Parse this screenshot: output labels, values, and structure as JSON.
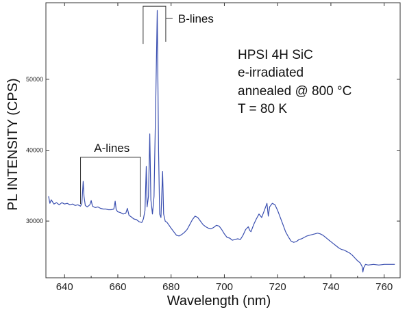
{
  "chart_data": {
    "type": "line",
    "xlabel": "Wavelength (nm)",
    "ylabel": "PL INTENSITY (CPS)",
    "xlim": [
      633,
      766
    ],
    "ylim": [
      22000,
      60800
    ],
    "xticks": [
      640,
      660,
      680,
      700,
      720,
      740,
      760
    ],
    "yticks": [
      30000,
      40000,
      50000
    ],
    "grid": false,
    "line_color": "#3a4fb0",
    "series": [
      {
        "points": [
          [
            634.0,
            33500
          ],
          [
            634.5,
            32500
          ],
          [
            635.0,
            33000
          ],
          [
            636.0,
            32400
          ],
          [
            637.0,
            32600
          ],
          [
            638.0,
            32300
          ],
          [
            639.0,
            32600
          ],
          [
            640.0,
            32400
          ],
          [
            641.0,
            32500
          ],
          [
            642.0,
            32300
          ],
          [
            643.0,
            32400
          ],
          [
            644.0,
            32200
          ],
          [
            645.0,
            32300
          ],
          [
            646.0,
            32100
          ],
          [
            646.5,
            32500
          ],
          [
            647.0,
            35600
          ],
          [
            647.3,
            33500
          ],
          [
            647.8,
            32200
          ],
          [
            648.5,
            32000
          ],
          [
            649.5,
            32300
          ],
          [
            650.0,
            32900
          ],
          [
            650.5,
            32100
          ],
          [
            651.5,
            31900
          ],
          [
            652.5,
            32000
          ],
          [
            653.5,
            31800
          ],
          [
            654.5,
            31700
          ],
          [
            655.5,
            31700
          ],
          [
            656.5,
            31600
          ],
          [
            657.5,
            31600
          ],
          [
            658.5,
            31700
          ],
          [
            659.0,
            32800
          ],
          [
            659.4,
            31600
          ],
          [
            660.0,
            31300
          ],
          [
            661.0,
            31200
          ],
          [
            662.0,
            31000
          ],
          [
            663.0,
            31100
          ],
          [
            663.6,
            31800
          ],
          [
            664.2,
            30800
          ],
          [
            665.0,
            30600
          ],
          [
            666.0,
            30300
          ],
          [
            667.0,
            30200
          ],
          [
            668.0,
            29900
          ],
          [
            669.0,
            29800
          ],
          [
            669.6,
            30300
          ],
          [
            670.2,
            31500
          ],
          [
            670.7,
            37700
          ],
          [
            671.0,
            32000
          ],
          [
            671.5,
            33500
          ],
          [
            672.0,
            42300
          ],
          [
            672.4,
            33000
          ],
          [
            673.0,
            31000
          ],
          [
            673.6,
            33500
          ],
          [
            674.3,
            48000
          ],
          [
            674.8,
            59700
          ],
          [
            675.3,
            40000
          ],
          [
            675.7,
            31000
          ],
          [
            676.2,
            30500
          ],
          [
            676.8,
            37000
          ],
          [
            677.2,
            31000
          ],
          [
            677.8,
            30000
          ],
          [
            678.5,
            29800
          ],
          [
            680.0,
            29000
          ],
          [
            681.0,
            28500
          ],
          [
            682.0,
            28000
          ],
          [
            683.0,
            27900
          ],
          [
            684.0,
            28100
          ],
          [
            685.0,
            28400
          ],
          [
            686.0,
            28800
          ],
          [
            687.0,
            29500
          ],
          [
            688.0,
            30200
          ],
          [
            689.0,
            30700
          ],
          [
            690.0,
            30500
          ],
          [
            691.0,
            30000
          ],
          [
            692.0,
            29500
          ],
          [
            693.0,
            29200
          ],
          [
            694.0,
            29000
          ],
          [
            695.0,
            28900
          ],
          [
            696.0,
            29100
          ],
          [
            697.0,
            29400
          ],
          [
            698.0,
            29300
          ],
          [
            699.0,
            28800
          ],
          [
            700.0,
            28200
          ],
          [
            701.0,
            27700
          ],
          [
            702.0,
            27600
          ],
          [
            703.0,
            27300
          ],
          [
            704.0,
            27400
          ],
          [
            705.0,
            27500
          ],
          [
            706.0,
            27400
          ],
          [
            707.0,
            28000
          ],
          [
            708.0,
            28800
          ],
          [
            709.0,
            29200
          ],
          [
            709.5,
            28700
          ],
          [
            710.0,
            28500
          ],
          [
            711.0,
            29500
          ],
          [
            712.0,
            30300
          ],
          [
            713.0,
            31000
          ],
          [
            714.0,
            30500
          ],
          [
            715.0,
            31500
          ],
          [
            716.0,
            32500
          ],
          [
            716.5,
            30700
          ],
          [
            717.0,
            32000
          ],
          [
            718.0,
            32500
          ],
          [
            719.0,
            32300
          ],
          [
            720.0,
            31500
          ],
          [
            721.0,
            30500
          ],
          [
            722.0,
            29500
          ],
          [
            723.0,
            28500
          ],
          [
            724.0,
            27800
          ],
          [
            725.0,
            27200
          ],
          [
            726.0,
            27000
          ],
          [
            727.0,
            27100
          ],
          [
            728.0,
            27400
          ],
          [
            729.0,
            27500
          ],
          [
            730.0,
            27700
          ],
          [
            731.0,
            27900
          ],
          [
            732.0,
            28000
          ],
          [
            733.0,
            28100
          ],
          [
            734.0,
            28200
          ],
          [
            735.0,
            28300
          ],
          [
            736.0,
            28200
          ],
          [
            737.0,
            28000
          ],
          [
            738.0,
            27700
          ],
          [
            739.0,
            27400
          ],
          [
            740.0,
            27100
          ],
          [
            741.0,
            26800
          ],
          [
            742.0,
            26500
          ],
          [
            743.0,
            26200
          ],
          [
            744.0,
            26000
          ],
          [
            745.0,
            25900
          ],
          [
            746.0,
            25700
          ],
          [
            747.0,
            25500
          ],
          [
            748.0,
            25200
          ],
          [
            749.0,
            24800
          ],
          [
            750.0,
            24400
          ],
          [
            751.0,
            24100
          ],
          [
            751.7,
            23600
          ],
          [
            752.0,
            22800
          ],
          [
            752.3,
            23400
          ],
          [
            753.0,
            23900
          ],
          [
            754.0,
            23800
          ],
          [
            756.0,
            23900
          ],
          [
            758.0,
            23800
          ],
          [
            760.0,
            23900
          ],
          [
            762.0,
            23900
          ],
          [
            764.0,
            23900
          ]
        ]
      }
    ],
    "annotations": {
      "a_lines": "A-lines",
      "b_lines": "B-lines",
      "sample_line1": "HPSI 4H SiC",
      "sample_line2": "e-irradiated",
      "sample_line3": "annealed @ 800 °C",
      "sample_line4": "T = 80 K"
    }
  }
}
